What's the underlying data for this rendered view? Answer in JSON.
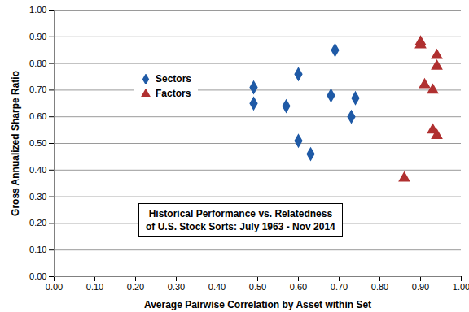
{
  "chart_data": {
    "type": "scatter",
    "title": [
      "Historical Performance vs. Relatedness",
      "of U.S. Stock Sorts: July 1963 - Nov 2014"
    ],
    "x_label": "Average Pairwise Correlation by Asset within Set",
    "y_label": "Gross Annualized Sharpe Ratio",
    "xlim": [
      0,
      1
    ],
    "ylim": [
      0,
      1
    ],
    "xticks": [
      {
        "value": 0,
        "label": "0.00"
      },
      {
        "value": 0.1,
        "label": "0.10"
      },
      {
        "value": 0.2,
        "label": "0.20"
      },
      {
        "value": 0.3,
        "label": "0.30"
      },
      {
        "value": 0.4,
        "label": "0.40"
      },
      {
        "value": 0.5,
        "label": "0.50"
      },
      {
        "value": 0.6,
        "label": "0.60"
      },
      {
        "value": 0.7,
        "label": "0.70"
      },
      {
        "value": 0.8,
        "label": "0.80"
      },
      {
        "value": 0.9,
        "label": "0.90"
      },
      {
        "value": 1,
        "label": "1.00"
      }
    ],
    "yticks": [
      {
        "value": 0,
        "label": "0.00"
      },
      {
        "value": 0.1,
        "label": "0.10"
      },
      {
        "value": 0.2,
        "label": "0.20"
      },
      {
        "value": 0.3,
        "label": "0.30"
      },
      {
        "value": 0.4,
        "label": "0.40"
      },
      {
        "value": 0.5,
        "label": "0.50"
      },
      {
        "value": 0.6,
        "label": "0.60"
      },
      {
        "value": 0.7,
        "label": "0.70"
      },
      {
        "value": 0.8,
        "label": "0.80"
      },
      {
        "value": 0.9,
        "label": "0.90"
      },
      {
        "value": 1,
        "label": "1.00"
      }
    ],
    "grid": true,
    "legend": "upper left",
    "series": [
      {
        "name": "Sectors",
        "color": "#1f5aa6",
        "marker": "diamond",
        "x": [
          0.49,
          0.49,
          0.57,
          0.6,
          0.6,
          0.63,
          0.68,
          0.69,
          0.73,
          0.74
        ],
        "values": [
          0.71,
          0.65,
          0.64,
          0.76,
          0.51,
          0.46,
          0.68,
          0.85,
          0.6,
          0.67
        ]
      },
      {
        "name": "Factors",
        "color": "#b03030",
        "marker": "triangle",
        "x": [
          0.86,
          0.9,
          0.9,
          0.91,
          0.93,
          0.93,
          0.94,
          0.94,
          0.94
        ],
        "values": [
          0.37,
          0.88,
          0.87,
          0.72,
          0.7,
          0.55,
          0.53,
          0.83,
          0.79
        ]
      }
    ]
  }
}
